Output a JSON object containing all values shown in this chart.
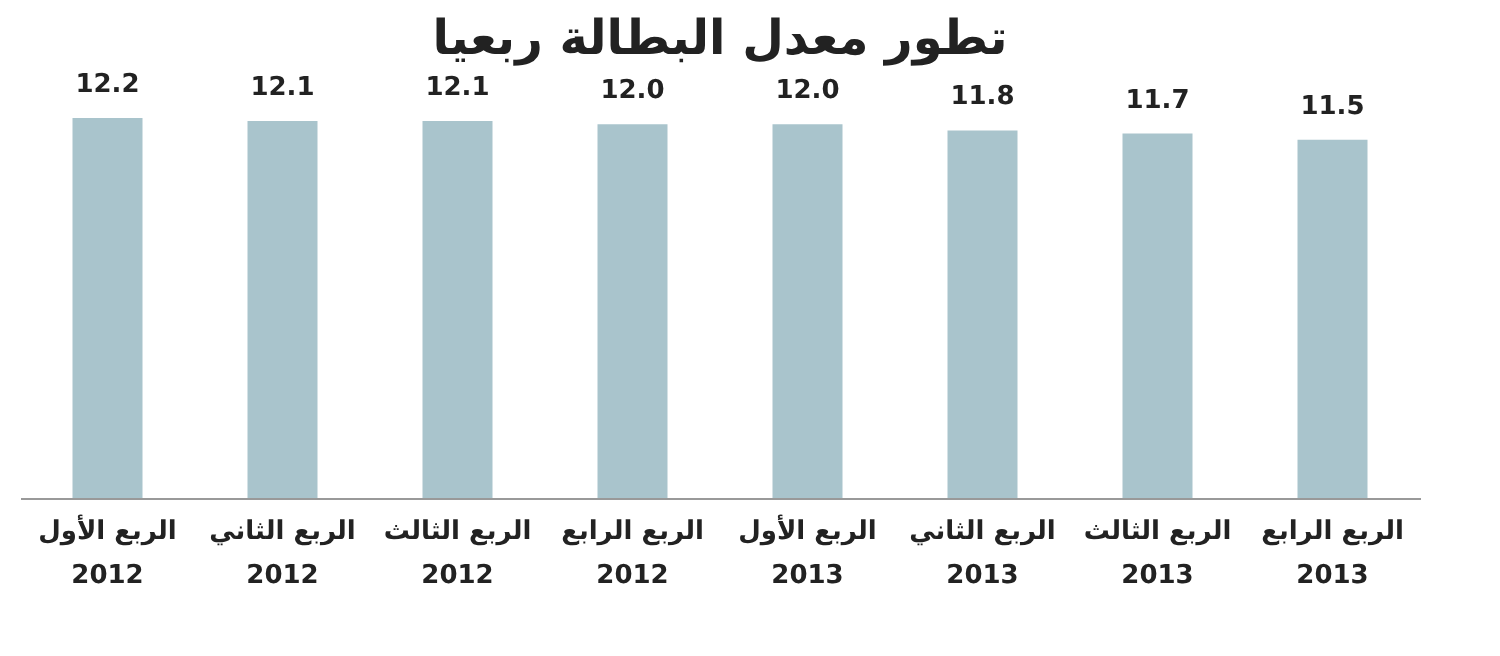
{
  "chart_data": {
    "type": "bar",
    "title": "تطور معدل البطالة ربعيا",
    "categories": [
      "الربع الأول\n2012",
      "الربع الثاني\n2012",
      "الربع الثالث\n2012",
      "الربع الرابع\n2012",
      "الربع الأول\n2013",
      "الربع الثاني\n2013",
      "الربع الثالث\n2013",
      "الربع الرابع\n2013"
    ],
    "values": [
      12.2,
      12.1,
      12.1,
      12.0,
      12.0,
      11.8,
      11.7,
      11.5
    ],
    "value_labels": [
      "12.2",
      "12.1",
      "12.1",
      "12.0",
      "12.0",
      "11.8",
      "11.7",
      "11.5"
    ],
    "color": "#a9c4cc",
    "tick_labels": "x",
    "grid": false
  }
}
